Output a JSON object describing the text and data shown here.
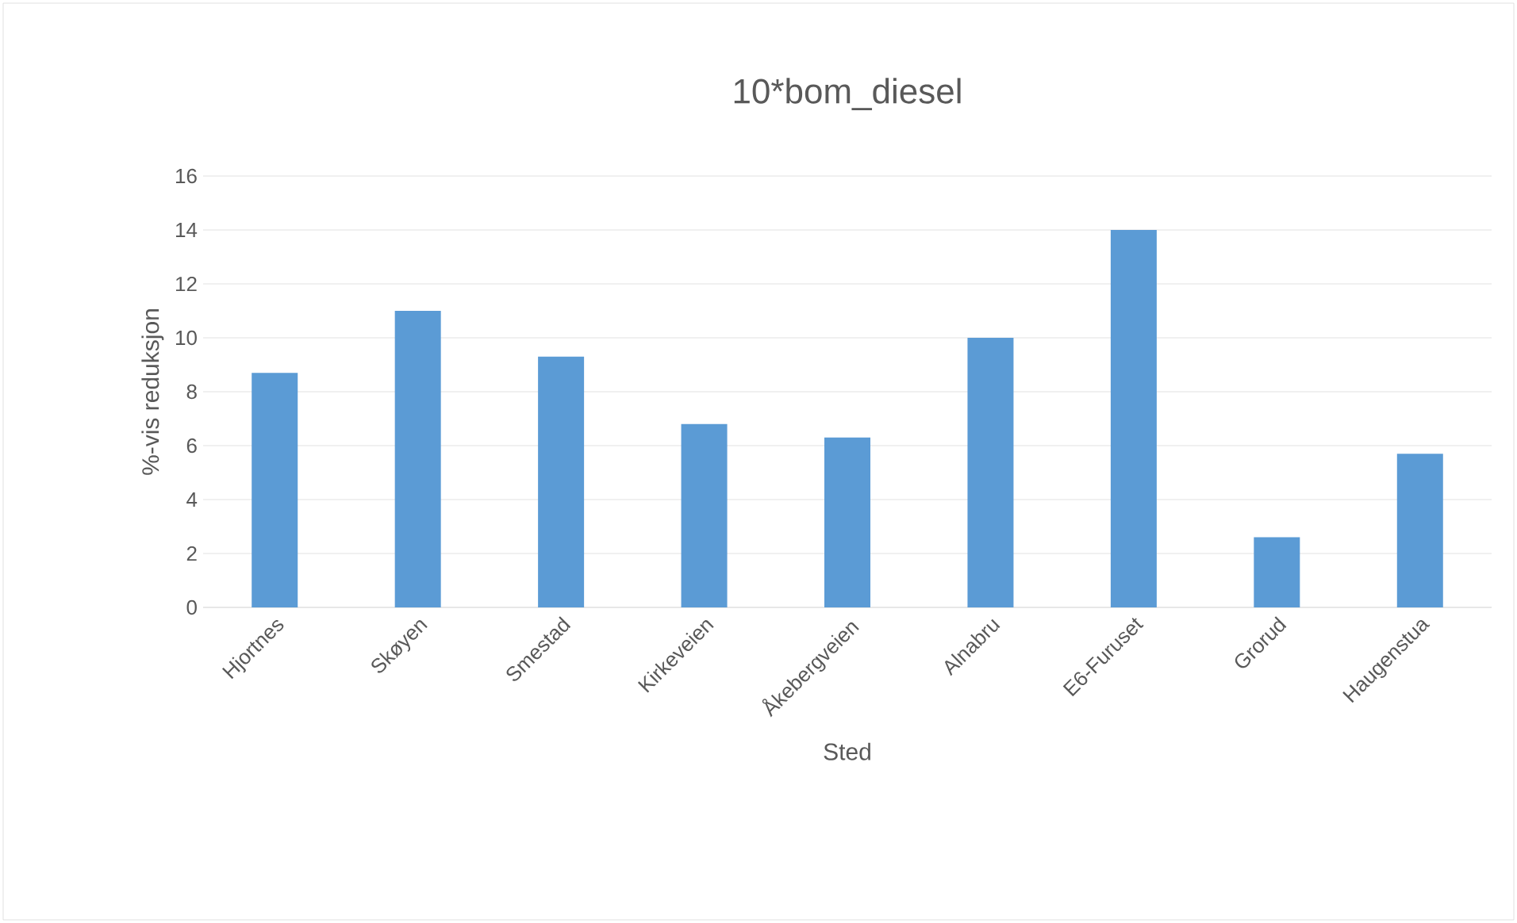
{
  "chart_data": {
    "type": "bar",
    "title": "10*bom_diesel",
    "xlabel": "Sted",
    "ylabel": "%-vis reduksjon",
    "categories": [
      "Hjortnes",
      "Skøyen",
      "Smestad",
      "Kirkeveien",
      "Åkebergveien",
      "Alnabru",
      "E6-Furuset",
      "Grorud",
      "Haugenstua"
    ],
    "values": [
      8.7,
      11.0,
      9.3,
      6.8,
      6.3,
      10.0,
      14.0,
      2.6,
      5.7
    ],
    "color": "#5b9bd5",
    "ylim": [
      0,
      16
    ],
    "yticks": [
      0,
      2,
      4,
      6,
      8,
      10,
      12,
      14,
      16
    ],
    "grid": "y"
  }
}
